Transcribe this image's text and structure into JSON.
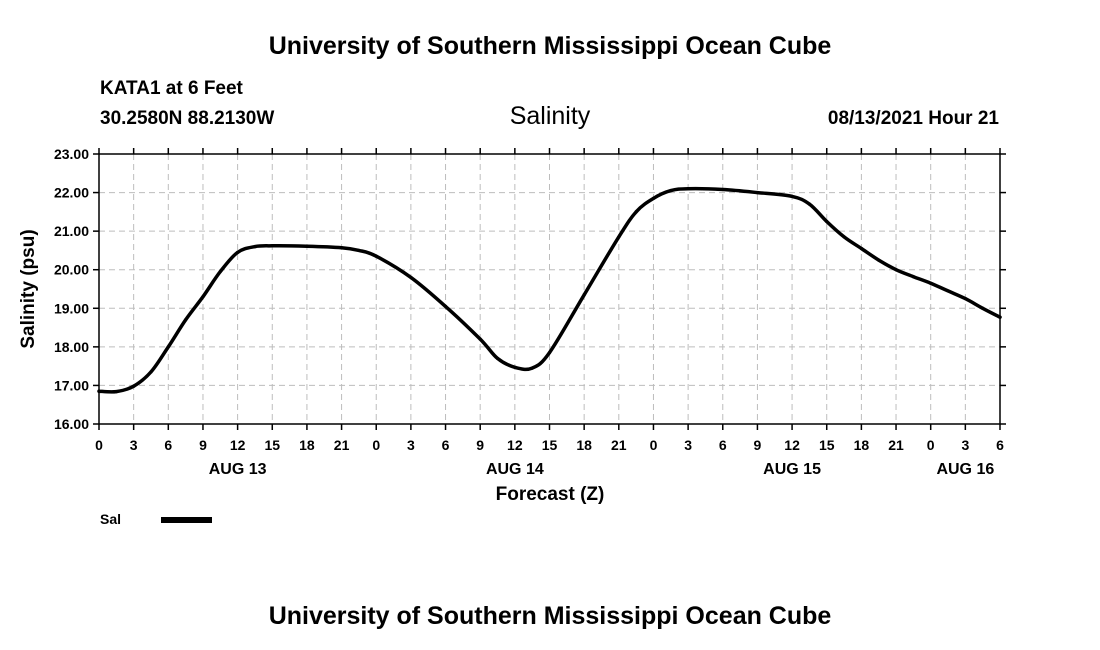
{
  "header": {
    "title": "University of Southern Mississippi Ocean Cube",
    "station": "KATA1 at 6 Feet",
    "coords": "30.2580N  88.2130W",
    "variable": "Salinity",
    "issued": "08/13/2021 Hour 21"
  },
  "footer": {
    "title": "University of Southern Mississippi Ocean Cube"
  },
  "legend": {
    "label": "Sal"
  },
  "chart_data": {
    "type": "line",
    "title": "Salinity",
    "xlabel": "Forecast (Z)",
    "ylabel": "Salinity (psu)",
    "ylim": [
      16.0,
      23.0
    ],
    "xlim": [
      0,
      78
    ],
    "x_units": "hours from AUG 13 00Z",
    "y_ticks": [
      "16.00",
      "17.00",
      "18.00",
      "19.00",
      "20.00",
      "21.00",
      "22.00",
      "23.00"
    ],
    "x_tick_labels": [
      "0",
      "3",
      "6",
      "9",
      "12",
      "15",
      "18",
      "21",
      "0",
      "3",
      "6",
      "9",
      "12",
      "15",
      "18",
      "21",
      "0",
      "3",
      "6",
      "9",
      "12",
      "15",
      "18",
      "21",
      "0",
      "3",
      "6"
    ],
    "day_labels": [
      {
        "label": "AUG 13",
        "hour": 12
      },
      {
        "label": "AUG 14",
        "hour": 36
      },
      {
        "label": "AUG 15",
        "hour": 60
      },
      {
        "label": "AUG 16",
        "hour": 75
      }
    ],
    "grid": true,
    "series": [
      {
        "name": "Sal",
        "x": [
          0,
          1.5,
          3,
          4.5,
          6,
          7.5,
          9,
          10.5,
          12,
          13.5,
          15,
          18,
          21,
          22.5,
          24,
          27,
          30,
          33,
          34.5,
          36,
          37.5,
          39,
          42,
          45,
          46.5,
          48,
          49.5,
          51,
          54,
          57,
          60,
          61.5,
          63,
          64.5,
          66,
          67.5,
          69,
          70.5,
          72,
          73.5,
          75,
          76.5,
          78
        ],
        "values": [
          16.85,
          16.84,
          16.98,
          17.35,
          18.0,
          18.7,
          19.3,
          19.95,
          20.45,
          20.6,
          20.62,
          20.61,
          20.57,
          20.5,
          20.35,
          19.8,
          19.05,
          18.2,
          17.7,
          17.47,
          17.45,
          17.85,
          19.35,
          20.85,
          21.5,
          21.85,
          22.05,
          22.1,
          22.08,
          22.0,
          21.9,
          21.7,
          21.25,
          20.85,
          20.55,
          20.25,
          20.0,
          19.82,
          19.65,
          19.45,
          19.25,
          19.0,
          18.77
        ]
      }
    ]
  }
}
